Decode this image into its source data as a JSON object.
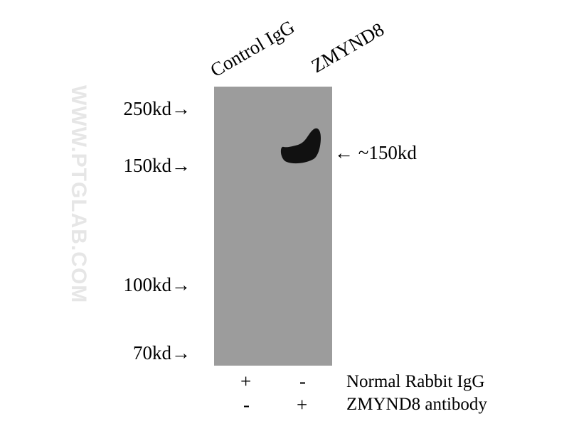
{
  "lanes": [
    "Control IgG",
    "ZMYND8"
  ],
  "markers": [
    "250kd→",
    "150kd→",
    "100kd→",
    "70kd→"
  ],
  "band_label": "← ~150kd",
  "watermark": "WWW.PTGLAB.COM",
  "conditions": [
    {
      "label": "Normal Rabbit IgG",
      "lane1": "+",
      "lane2": "-"
    },
    {
      "label": "ZMYND8 antibody",
      "lane1": "-",
      "lane2": "+"
    }
  ],
  "colors": {
    "membrane": "#9c9c9c",
    "band": "#111111"
  }
}
